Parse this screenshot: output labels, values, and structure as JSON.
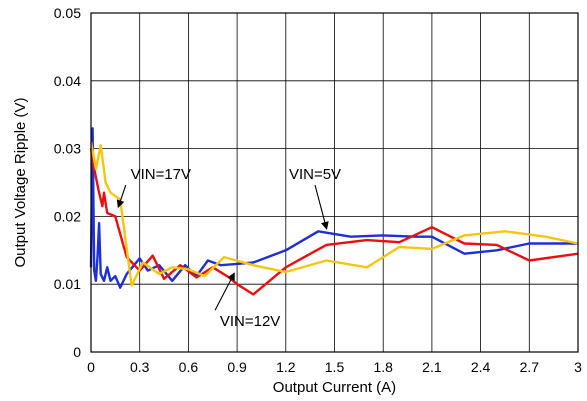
{
  "chart_data": {
    "type": "line",
    "title": "",
    "xlabel": "Output Current (A)",
    "ylabel": "Output Voltage Ripple (V)",
    "xlim": [
      0,
      3
    ],
    "ylim": [
      0,
      0.05
    ],
    "x_ticks": [
      "0",
      "0.3",
      "0.6",
      "0.9",
      "1.2",
      "1.5",
      "1.8",
      "2.1",
      "2.4",
      "2.7",
      "3"
    ],
    "y_ticks": [
      "0",
      "0.01",
      "0.02",
      "0.03",
      "0.04",
      "0.05"
    ],
    "grid": true,
    "legend": "none",
    "series": [
      {
        "color": "#1f2fd6",
        "points": [
          [
            0.0,
            0.0125
          ],
          [
            0.01,
            0.033
          ],
          [
            0.02,
            0.012
          ],
          [
            0.03,
            0.0105
          ],
          [
            0.04,
            0.014
          ],
          [
            0.05,
            0.019
          ],
          [
            0.06,
            0.0115
          ],
          [
            0.08,
            0.0105
          ],
          [
            0.1,
            0.0125
          ],
          [
            0.12,
            0.0105
          ],
          [
            0.15,
            0.0112
          ],
          [
            0.18,
            0.0095
          ],
          [
            0.22,
            0.0115
          ],
          [
            0.3,
            0.0138
          ],
          [
            0.35,
            0.012
          ],
          [
            0.42,
            0.0128
          ],
          [
            0.5,
            0.0105
          ],
          [
            0.58,
            0.0128
          ],
          [
            0.65,
            0.0112
          ],
          [
            0.72,
            0.0135
          ],
          [
            0.8,
            0.0128
          ],
          [
            0.9,
            0.013
          ],
          [
            1.0,
            0.0132
          ],
          [
            1.2,
            0.015
          ],
          [
            1.4,
            0.0178
          ],
          [
            1.6,
            0.017
          ],
          [
            1.8,
            0.0172
          ],
          [
            2.0,
            0.017
          ],
          [
            2.1,
            0.017
          ],
          [
            2.3,
            0.0145
          ],
          [
            2.5,
            0.015
          ],
          [
            2.7,
            0.016
          ],
          [
            3.0,
            0.016
          ]
        ]
      },
      {
        "color": "#e81010",
        "points": [
          [
            0.0,
            0.03
          ],
          [
            0.02,
            0.027
          ],
          [
            0.05,
            0.0235
          ],
          [
            0.07,
            0.0215
          ],
          [
            0.08,
            0.0235
          ],
          [
            0.1,
            0.0205
          ],
          [
            0.15,
            0.02
          ],
          [
            0.22,
            0.014
          ],
          [
            0.3,
            0.012
          ],
          [
            0.38,
            0.0142
          ],
          [
            0.45,
            0.0108
          ],
          [
            0.55,
            0.0128
          ],
          [
            0.65,
            0.011
          ],
          [
            0.75,
            0.0125
          ],
          [
            0.85,
            0.011
          ],
          [
            0.9,
            0.01
          ],
          [
            1.0,
            0.0085
          ],
          [
            1.2,
            0.0125
          ],
          [
            1.45,
            0.0158
          ],
          [
            1.7,
            0.0165
          ],
          [
            1.9,
            0.0162
          ],
          [
            2.1,
            0.0184
          ],
          [
            2.3,
            0.016
          ],
          [
            2.5,
            0.0158
          ],
          [
            2.7,
            0.0135
          ],
          [
            3.0,
            0.0145
          ]
        ]
      },
      {
        "color": "#f5c60e",
        "points": [
          [
            0.0,
            0.031
          ],
          [
            0.03,
            0.027
          ],
          [
            0.06,
            0.0305
          ],
          [
            0.09,
            0.025
          ],
          [
            0.12,
            0.0235
          ],
          [
            0.18,
            0.0225
          ],
          [
            0.25,
            0.0098
          ],
          [
            0.32,
            0.0132
          ],
          [
            0.42,
            0.0115
          ],
          [
            0.5,
            0.0125
          ],
          [
            0.6,
            0.0122
          ],
          [
            0.7,
            0.0112
          ],
          [
            0.82,
            0.014
          ],
          [
            1.0,
            0.0128
          ],
          [
            1.2,
            0.0118
          ],
          [
            1.45,
            0.0135
          ],
          [
            1.7,
            0.0125
          ],
          [
            1.9,
            0.0155
          ],
          [
            2.1,
            0.0152
          ],
          [
            2.3,
            0.0172
          ],
          [
            2.55,
            0.0178
          ],
          [
            2.8,
            0.017
          ],
          [
            3.0,
            0.016
          ]
        ]
      }
    ],
    "annotations": [
      {
        "text": "VIN=17V",
        "tx": 0.43,
        "ty": 0.0255,
        "ax": 0.17,
        "ay": 0.0215
      },
      {
        "text": "VIN=5V",
        "tx": 1.38,
        "ty": 0.0255,
        "ax": 1.45,
        "ay": 0.0183
      },
      {
        "text": "VIN=12V",
        "tx": 0.98,
        "ty": 0.0038,
        "ax": 0.88,
        "ay": 0.0115
      }
    ]
  }
}
